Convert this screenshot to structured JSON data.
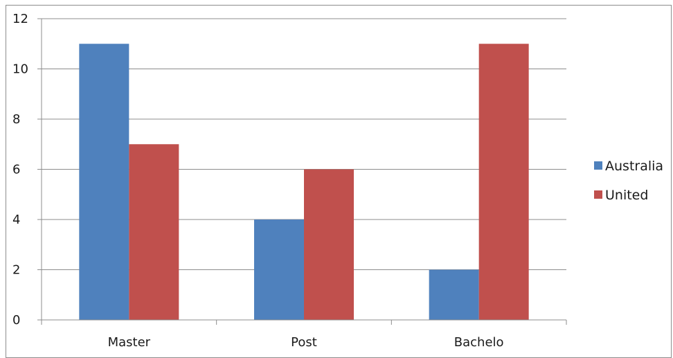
{
  "chart_data": {
    "type": "bar",
    "categories": [
      "Master",
      "Post",
      "Bachelo"
    ],
    "series": [
      {
        "name": "Australia",
        "color": "#4f81bd",
        "values": [
          11,
          4,
          2
        ]
      },
      {
        "name": "United",
        "color": "#c0504d",
        "values": [
          7,
          6,
          11
        ]
      }
    ],
    "title": "",
    "xlabel": "",
    "ylabel": "",
    "ylim": [
      0,
      12
    ],
    "yticks": [
      0,
      2,
      4,
      6,
      8,
      10,
      12
    ],
    "grid": true,
    "legend_position": "right"
  },
  "colors": {
    "gridline": "#8c8c8c",
    "axis": "#8c8c8c"
  }
}
